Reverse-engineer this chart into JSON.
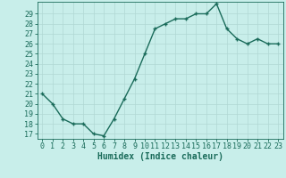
{
  "x": [
    0,
    1,
    2,
    3,
    4,
    5,
    6,
    7,
    8,
    9,
    10,
    11,
    12,
    13,
    14,
    15,
    16,
    17,
    18,
    19,
    20,
    21,
    22,
    23
  ],
  "y": [
    21,
    20,
    18.5,
    18,
    18,
    17,
    16.8,
    18.5,
    20.5,
    22.5,
    25,
    27.5,
    28,
    28.5,
    28.5,
    29,
    29,
    30,
    27.5,
    26.5,
    26,
    26.5,
    26,
    26
  ],
  "line_color": "#1a6b5a",
  "marker_color": "#1a6b5a",
  "bg_color": "#c8eeea",
  "grid_color": "#b0d8d4",
  "xlabel": "Humidex (Indice chaleur)",
  "ylim": [
    16.5,
    30.2
  ],
  "xlim": [
    -0.5,
    23.5
  ],
  "yticks": [
    17,
    18,
    19,
    20,
    21,
    22,
    23,
    24,
    25,
    26,
    27,
    28,
    29
  ],
  "xticks": [
    0,
    1,
    2,
    3,
    4,
    5,
    6,
    7,
    8,
    9,
    10,
    11,
    12,
    13,
    14,
    15,
    16,
    17,
    18,
    19,
    20,
    21,
    22,
    23
  ],
  "xlabel_color": "#1a6b5a",
  "tick_color": "#1a6b5a",
  "axis_color": "#1a6b5a",
  "marker_size": 2.5,
  "line_width": 1.0,
  "font_size": 6,
  "xlabel_fontsize": 7
}
